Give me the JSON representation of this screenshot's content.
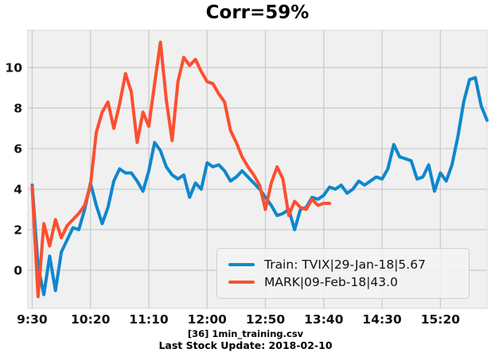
{
  "title": "Corr=59%",
  "captions": {
    "file": "[36] 1min_training.csv",
    "update": "Last Stock Update: 2018-02-10"
  },
  "legend": {
    "position": "lower right",
    "items": [
      {
        "label": "Train: TVIX|29-Jan-18|5.67",
        "color": "#0f87cd"
      },
      {
        "label": "MARK|09-Feb-18|43.0",
        "color": "#fc4f30"
      }
    ]
  },
  "colors": {
    "figure_bg": "#ffffff",
    "axes_bg": "#f0f0f0",
    "grid": "#cbcbcb",
    "plot_border": "#d9d9d9",
    "tick_text": "#111111"
  },
  "chart_data": {
    "type": "line",
    "title": "Corr=59%",
    "grid": true,
    "legend_position": "lower right",
    "x_axis": {
      "tick_labels": [
        "9:30",
        "10:20",
        "11:10",
        "12:00",
        "12:50",
        "13:40",
        "14:30",
        "15:20"
      ],
      "tick_minutes": [
        0,
        50,
        100,
        150,
        200,
        250,
        300,
        350
      ],
      "range_minutes": [
        -3.7,
        390
      ]
    },
    "y_axis": {
      "ticks": [
        0,
        2,
        4,
        6,
        8,
        10
      ],
      "range": [
        -1.88,
        11.84
      ]
    },
    "series": [
      {
        "name": "Train: TVIX|29-Jan-18|5.67",
        "color": "#0f87cd",
        "start_minute": 0,
        "step_minutes": 5,
        "values": [
          4.2,
          0.2,
          -1.2,
          0.7,
          -1.0,
          0.9,
          1.5,
          2.1,
          2.0,
          3.0,
          4.3,
          3.2,
          2.3,
          3.1,
          4.4,
          5.0,
          4.8,
          4.8,
          4.4,
          3.9,
          4.9,
          6.3,
          5.9,
          5.1,
          4.7,
          4.5,
          4.7,
          3.6,
          4.3,
          4.0,
          5.3,
          5.1,
          5.2,
          4.9,
          4.4,
          4.6,
          4.9,
          4.6,
          4.3,
          4.0,
          3.6,
          3.2,
          2.7,
          2.8,
          3.0,
          2.0,
          3.0,
          3.1,
          3.6,
          3.5,
          3.7,
          4.1,
          4.0,
          4.2,
          3.8,
          4.0,
          4.4,
          4.2,
          4.4,
          4.6,
          4.5,
          5.0,
          6.2,
          5.6,
          5.5,
          5.4,
          4.5,
          4.6,
          5.2,
          3.9,
          4.8,
          4.4,
          5.2,
          6.6,
          8.3,
          9.4,
          9.5,
          8.1,
          7.4
        ]
      },
      {
        "name": "MARK|09-Feb-18|43.0",
        "color": "#fc4f30",
        "start_minute": 0,
        "step_minutes": 5,
        "values": [
          4.1,
          -1.3,
          2.3,
          1.2,
          2.5,
          1.6,
          2.2,
          2.5,
          2.8,
          3.2,
          4.2,
          6.8,
          7.8,
          8.3,
          7.0,
          8.2,
          9.7,
          8.8,
          6.3,
          7.8,
          7.1,
          9.2,
          11.25,
          8.4,
          6.4,
          9.3,
          10.5,
          10.1,
          10.4,
          9.8,
          9.3,
          9.2,
          8.7,
          8.3,
          6.9,
          6.3,
          5.6,
          5.1,
          4.7,
          4.2,
          3.0,
          4.3,
          5.1,
          4.5,
          2.7,
          3.4,
          3.1,
          3.0,
          3.5,
          3.2,
          3.3,
          3.3
        ]
      }
    ]
  }
}
